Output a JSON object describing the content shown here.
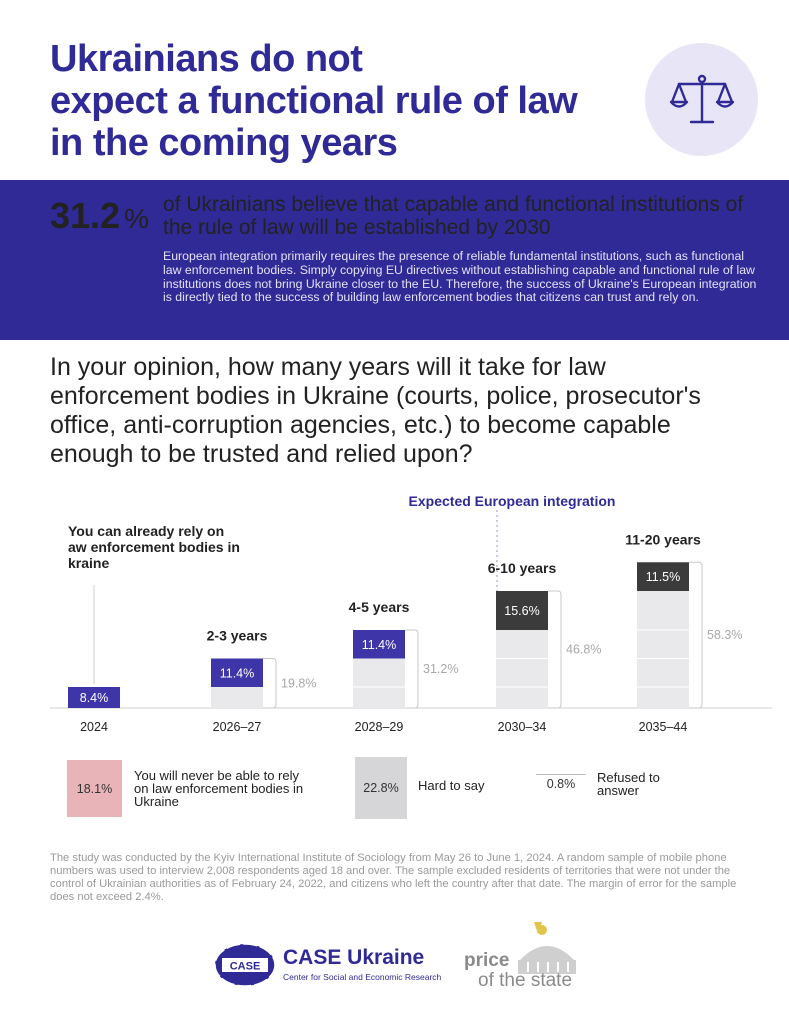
{
  "header": {
    "title_lines": [
      "Ukrainians do not",
      "expect a functional rule of law",
      "in the coming years"
    ],
    "icon": "scales-of-justice-icon"
  },
  "highlight": {
    "value": "31.2",
    "unit": "%",
    "headline": "of Ukrainians believe that capable and functional institutions of the rule of law will be established by 2030",
    "body": "European integration primarily requires the presence of reliable fundamental institutions, such as functional law enforcement bodies. Simply copying EU directives without establishing capable and functional rule of law institutions does not bring Ukraine closer to the EU. Therefore, the success of Ukraine's European integration is directly tied to the success of building law enforcement bodies that citizens can trust and rely on."
  },
  "question": "In your opinion, how many years will it take for law enforcement bodies in Ukraine (courts, police, prosecutor's office, anti-corruption agencies, etc.) to become capable enough to be trusted and relied upon?",
  "chart_data": {
    "type": "bar",
    "title": "",
    "categories": [
      "2024",
      "2026–27",
      "2028–29",
      "2030–34",
      "2035–44"
    ],
    "category_headers": [
      "You can already rely on law enforcement bodies in Ukraine",
      "2-3 years",
      "4-5 years",
      "6-10 years",
      "11-20 years"
    ],
    "values": [
      8.4,
      11.4,
      11.4,
      15.6,
      11.5
    ],
    "value_labels": [
      "8.4%",
      "11.4%",
      "11.4%",
      "15.6%",
      "11.5%"
    ],
    "cumulative": [
      8.4,
      19.8,
      31.2,
      46.8,
      58.3
    ],
    "cumulative_labels": [
      "",
      "19.8%",
      "31.2%",
      "46.8%",
      "58.3%"
    ],
    "annotation": "Expected European integration",
    "colors": {
      "blue": "#3d35a8",
      "dark": "#3b3b3b",
      "cumulative_fill": "#e9e9ec",
      "accent": "#2f2a96"
    }
  },
  "legend": [
    {
      "value": "18.1%",
      "label": "You will never be able to rely on law enforcement bodies in Ukraine",
      "color": "#e9b4b8"
    },
    {
      "value": "22.8%",
      "label": "Hard to say",
      "color": "#d6d6d8"
    },
    {
      "value": "0.8%",
      "label": "Refused to answer",
      "color": "#ffffff"
    }
  ],
  "footnote": "The study was conducted by the Kyiv International Institute of Sociology from May 26 to June 1, 2024. A random sample of mobile phone numbers was used to interview 2,008 respondents aged 18 and over. The sample excluded residents of territories that were not under the control of Ukrainian authorities as of February 24, 2022, and citizens who left the country after that date. The margin of error for the sample does not exceed 2.4%.",
  "logos": {
    "case_badge": "CASE",
    "case_name": "CASE Ukraine",
    "case_sub": "Center for Social and Economic Research",
    "pots_line1": "price",
    "pots_line2": "of the state"
  }
}
